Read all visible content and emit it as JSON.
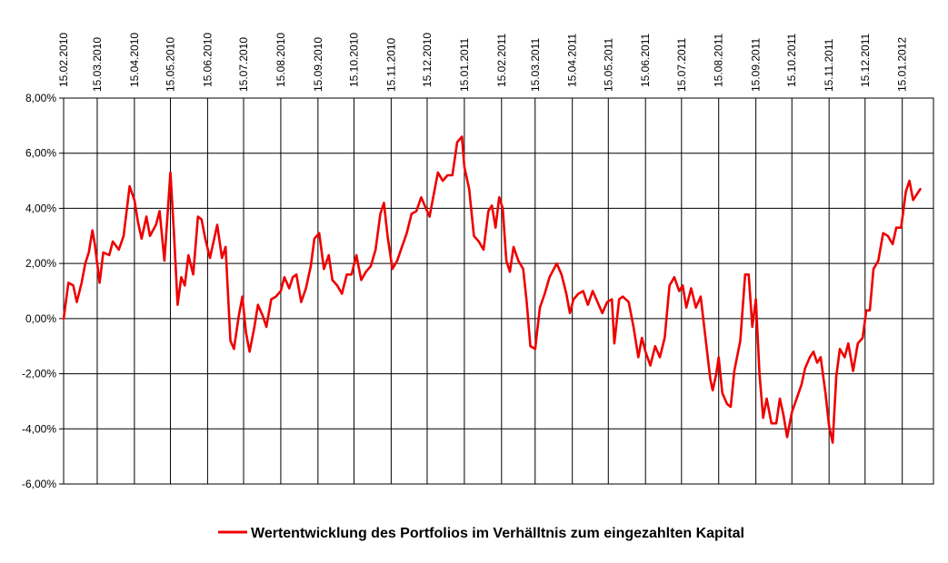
{
  "chart_data": {
    "type": "line",
    "title": "",
    "xlabel": "",
    "ylabel": "",
    "ylim": [
      -0.06,
      0.08
    ],
    "y_ticks": [
      0.08,
      0.06,
      0.04,
      0.02,
      0.0,
      -0.02,
      -0.04,
      -0.06
    ],
    "y_tick_labels": [
      "8,00%",
      "6,00%",
      "4,00%",
      "2,00%",
      "0,00%",
      "-2,00%",
      "-4,00%",
      "-6,00%"
    ],
    "x_range": [
      "2010-02-15",
      "2012-02-10"
    ],
    "x_ticks": [
      "2010-02-15",
      "2010-03-15",
      "2010-04-15",
      "2010-05-15",
      "2010-06-15",
      "2010-07-15",
      "2010-08-15",
      "2010-09-15",
      "2010-10-15",
      "2010-11-15",
      "2010-12-15",
      "2011-01-15",
      "2011-02-15",
      "2011-03-15",
      "2011-04-15",
      "2011-05-15",
      "2011-06-15",
      "2011-07-15",
      "2011-08-15",
      "2011-09-15",
      "2011-10-15",
      "2011-11-15",
      "2011-12-15",
      "2012-01-15"
    ],
    "x_tick_labels": [
      "15.02.2010",
      "15.03.2010",
      "15.04.2010",
      "15.05.2010",
      "15.06.2010",
      "15.07.2010",
      "15.08.2010",
      "15.09.2010",
      "15.10.2010",
      "15.11.2010",
      "15.12.2010",
      "15.01.2011",
      "15.02.2011",
      "15.03.2011",
      "15.04.2011",
      "15.05.2011",
      "15.06.2011",
      "15.07.2011",
      "15.08.2011",
      "15.09.2011",
      "15.10.2011",
      "15.11.2011",
      "15.12.2011",
      "15.01.2012"
    ],
    "grid": true,
    "legend_position": "bottom-center",
    "series": [
      {
        "name": "Wertentwicklung des Portfolios im Verhälltnis zum eingezahlten Kapital",
        "color": "#ee0000",
        "points": [
          [
            "2010-02-15",
            0.0
          ],
          [
            "2010-02-19",
            0.013
          ],
          [
            "2010-02-23",
            0.012
          ],
          [
            "2010-02-26",
            0.006
          ],
          [
            "2010-03-02",
            0.013
          ],
          [
            "2010-03-05",
            0.02
          ],
          [
            "2010-03-08",
            0.024
          ],
          [
            "2010-03-11",
            0.032
          ],
          [
            "2010-03-13",
            0.027
          ],
          [
            "2010-03-17",
            0.013
          ],
          [
            "2010-03-20",
            0.024
          ],
          [
            "2010-03-25",
            0.023
          ],
          [
            "2010-03-28",
            0.028
          ],
          [
            "2010-04-02",
            0.025
          ],
          [
            "2010-04-06",
            0.03
          ],
          [
            "2010-04-11",
            0.048
          ],
          [
            "2010-04-15",
            0.043
          ],
          [
            "2010-04-18",
            0.035
          ],
          [
            "2010-04-21",
            0.029
          ],
          [
            "2010-04-25",
            0.037
          ],
          [
            "2010-04-28",
            0.03
          ],
          [
            "2010-05-03",
            0.034
          ],
          [
            "2010-05-06",
            0.039
          ],
          [
            "2010-05-10",
            0.021
          ],
          [
            "2010-05-15",
            0.053
          ],
          [
            "2010-05-18",
            0.031
          ],
          [
            "2010-05-21",
            0.005
          ],
          [
            "2010-05-24",
            0.015
          ],
          [
            "2010-05-27",
            0.012
          ],
          [
            "2010-05-30",
            0.023
          ],
          [
            "2010-06-03",
            0.016
          ],
          [
            "2010-06-07",
            0.037
          ],
          [
            "2010-06-10",
            0.036
          ],
          [
            "2010-06-13",
            0.029
          ],
          [
            "2010-06-17",
            0.022
          ],
          [
            "2010-06-20",
            0.028
          ],
          [
            "2010-06-23",
            0.034
          ],
          [
            "2010-06-27",
            0.022
          ],
          [
            "2010-06-30",
            0.026
          ],
          [
            "2010-07-04",
            -0.008
          ],
          [
            "2010-07-07",
            -0.011
          ],
          [
            "2010-07-11",
            0.001
          ],
          [
            "2010-07-14",
            0.008
          ],
          [
            "2010-07-17",
            -0.005
          ],
          [
            "2010-07-20",
            -0.012
          ],
          [
            "2010-07-24",
            -0.003
          ],
          [
            "2010-07-27",
            0.005
          ],
          [
            "2010-07-31",
            0.001
          ],
          [
            "2010-08-03",
            -0.003
          ],
          [
            "2010-08-07",
            0.007
          ],
          [
            "2010-08-11",
            0.008
          ],
          [
            "2010-08-15",
            0.01
          ],
          [
            "2010-08-18",
            0.015
          ],
          [
            "2010-08-22",
            0.011
          ],
          [
            "2010-08-25",
            0.015
          ],
          [
            "2010-08-28",
            0.016
          ],
          [
            "2010-09-01",
            0.006
          ],
          [
            "2010-09-05",
            0.011
          ],
          [
            "2010-09-09",
            0.019
          ],
          [
            "2010-09-12",
            0.029
          ],
          [
            "2010-09-16",
            0.031
          ],
          [
            "2010-09-20",
            0.018
          ],
          [
            "2010-09-24",
            0.023
          ],
          [
            "2010-09-27",
            0.014
          ],
          [
            "2010-10-01",
            0.012
          ],
          [
            "2010-10-05",
            0.009
          ],
          [
            "2010-10-09",
            0.016
          ],
          [
            "2010-10-13",
            0.016
          ],
          [
            "2010-10-17",
            0.023
          ],
          [
            "2010-10-21",
            0.014
          ],
          [
            "2010-10-25",
            0.017
          ],
          [
            "2010-10-29",
            0.019
          ],
          [
            "2010-11-02",
            0.025
          ],
          [
            "2010-11-06",
            0.038
          ],
          [
            "2010-11-09",
            0.042
          ],
          [
            "2010-11-12",
            0.03
          ],
          [
            "2010-11-16",
            0.018
          ],
          [
            "2010-11-20",
            0.021
          ],
          [
            "2010-11-24",
            0.026
          ],
          [
            "2010-11-28",
            0.031
          ],
          [
            "2010-12-02",
            0.038
          ],
          [
            "2010-12-06",
            0.039
          ],
          [
            "2010-12-10",
            0.044
          ],
          [
            "2010-12-14",
            0.04
          ],
          [
            "2010-12-17",
            0.037
          ],
          [
            "2010-12-20",
            0.044
          ],
          [
            "2010-12-24",
            0.053
          ],
          [
            "2010-12-28",
            0.05
          ],
          [
            "2011-01-01",
            0.052
          ],
          [
            "2011-01-05",
            0.052
          ],
          [
            "2011-01-09",
            0.064
          ],
          [
            "2011-01-13",
            0.066
          ],
          [
            "2011-01-15",
            0.055
          ],
          [
            "2011-01-19",
            0.047
          ],
          [
            "2011-01-23",
            0.03
          ],
          [
            "2011-01-27",
            0.028
          ],
          [
            "2011-01-31",
            0.025
          ],
          [
            "2011-02-04",
            0.039
          ],
          [
            "2011-02-07",
            0.041
          ],
          [
            "2011-02-10",
            0.033
          ],
          [
            "2011-02-13",
            0.044
          ],
          [
            "2011-02-16",
            0.04
          ],
          [
            "2011-02-19",
            0.021
          ],
          [
            "2011-02-22",
            0.017
          ],
          [
            "2011-02-25",
            0.026
          ],
          [
            "2011-03-01",
            0.021
          ],
          [
            "2011-03-05",
            0.018
          ],
          [
            "2011-03-08",
            0.006
          ],
          [
            "2011-03-11",
            -0.01
          ],
          [
            "2011-03-15",
            -0.011
          ],
          [
            "2011-03-19",
            0.004
          ],
          [
            "2011-03-23",
            0.009
          ],
          [
            "2011-03-27",
            0.015
          ],
          [
            "2011-04-02",
            0.02
          ],
          [
            "2011-04-06",
            0.016
          ],
          [
            "2011-04-10",
            0.009
          ],
          [
            "2011-04-13",
            0.002
          ],
          [
            "2011-04-16",
            0.007
          ],
          [
            "2011-04-20",
            0.009
          ],
          [
            "2011-04-24",
            0.01
          ],
          [
            "2011-04-28",
            0.005
          ],
          [
            "2011-05-02",
            0.01
          ],
          [
            "2011-05-06",
            0.006
          ],
          [
            "2011-05-10",
            0.002
          ],
          [
            "2011-05-14",
            0.006
          ],
          [
            "2011-05-18",
            0.007
          ],
          [
            "2011-05-20",
            -0.009
          ],
          [
            "2011-05-24",
            0.007
          ],
          [
            "2011-05-27",
            0.008
          ],
          [
            "2011-06-01",
            0.006
          ],
          [
            "2011-06-05",
            -0.003
          ],
          [
            "2011-06-09",
            -0.014
          ],
          [
            "2011-06-12",
            -0.007
          ],
          [
            "2011-06-15",
            -0.012
          ],
          [
            "2011-06-19",
            -0.017
          ],
          [
            "2011-06-23",
            -0.01
          ],
          [
            "2011-06-27",
            -0.014
          ],
          [
            "2011-07-01",
            -0.007
          ],
          [
            "2011-07-05",
            0.012
          ],
          [
            "2011-07-09",
            0.015
          ],
          [
            "2011-07-13",
            0.01
          ],
          [
            "2011-07-16",
            0.012
          ],
          [
            "2011-07-19",
            0.004
          ],
          [
            "2011-07-23",
            0.011
          ],
          [
            "2011-07-27",
            0.004
          ],
          [
            "2011-07-31",
            0.008
          ],
          [
            "2011-08-04",
            -0.007
          ],
          [
            "2011-08-08",
            -0.022
          ],
          [
            "2011-08-10",
            -0.026
          ],
          [
            "2011-08-13",
            -0.02
          ],
          [
            "2011-08-15",
            -0.014
          ],
          [
            "2011-08-18",
            -0.027
          ],
          [
            "2011-08-22",
            -0.031
          ],
          [
            "2011-08-25",
            -0.032
          ],
          [
            "2011-08-28",
            -0.019
          ],
          [
            "2011-09-02",
            -0.008
          ],
          [
            "2011-09-06",
            0.016
          ],
          [
            "2011-09-09",
            0.016
          ],
          [
            "2011-09-12",
            -0.003
          ],
          [
            "2011-09-15",
            0.007
          ],
          [
            "2011-09-18",
            -0.02
          ],
          [
            "2011-09-21",
            -0.036
          ],
          [
            "2011-09-24",
            -0.029
          ],
          [
            "2011-09-28",
            -0.038
          ],
          [
            "2011-10-02",
            -0.038
          ],
          [
            "2011-10-05",
            -0.029
          ],
          [
            "2011-10-08",
            -0.035
          ],
          [
            "2011-10-11",
            -0.043
          ],
          [
            "2011-10-15",
            -0.034
          ],
          [
            "2011-10-19",
            -0.029
          ],
          [
            "2011-10-23",
            -0.024
          ],
          [
            "2011-10-26",
            -0.018
          ],
          [
            "2011-10-30",
            -0.014
          ],
          [
            "2011-11-02",
            -0.012
          ],
          [
            "2011-11-05",
            -0.016
          ],
          [
            "2011-11-08",
            -0.014
          ],
          [
            "2011-11-12",
            -0.027
          ],
          [
            "2011-11-15",
            -0.039
          ],
          [
            "2011-11-18",
            -0.045
          ],
          [
            "2011-11-21",
            -0.021
          ],
          [
            "2011-11-24",
            -0.011
          ],
          [
            "2011-11-28",
            -0.014
          ],
          [
            "2011-12-01",
            -0.009
          ],
          [
            "2011-12-05",
            -0.019
          ],
          [
            "2011-12-09",
            -0.009
          ],
          [
            "2011-12-13",
            -0.007
          ],
          [
            "2011-12-16",
            0.003
          ],
          [
            "2011-12-19",
            0.003
          ],
          [
            "2011-12-22",
            0.018
          ],
          [
            "2011-12-26",
            0.021
          ],
          [
            "2011-12-30",
            0.031
          ],
          [
            "2012-01-03",
            0.03
          ],
          [
            "2012-01-07",
            0.027
          ],
          [
            "2012-01-10",
            0.033
          ],
          [
            "2012-01-14",
            0.033
          ],
          [
            "2012-01-18",
            0.046
          ],
          [
            "2012-01-21",
            0.05
          ],
          [
            "2012-01-24",
            0.043
          ],
          [
            "2012-01-27",
            0.045
          ],
          [
            "2012-01-30",
            0.047
          ]
        ]
      }
    ]
  }
}
